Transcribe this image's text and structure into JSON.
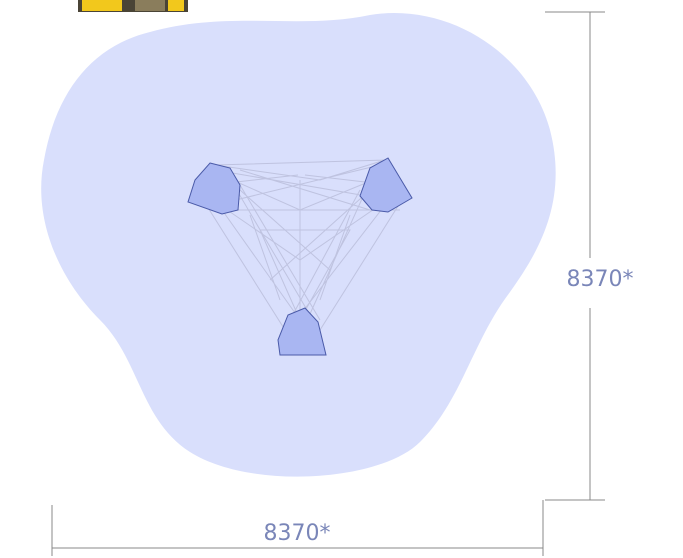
{
  "dimensions": {
    "width": {
      "label": "8370*"
    },
    "height": {
      "label": "8370*"
    }
  }
}
